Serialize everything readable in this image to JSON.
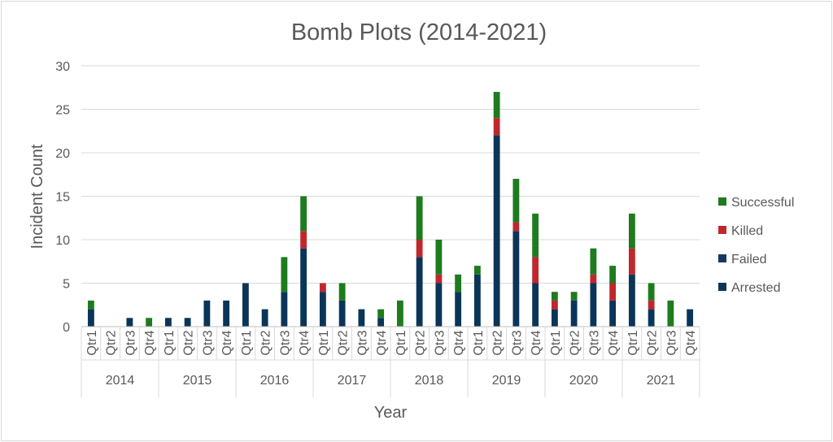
{
  "chart_data": {
    "type": "bar",
    "stacked": true,
    "title": "Bomb Plots (2014-2021)",
    "xlabel": "Year",
    "ylabel": "Incident Count",
    "ylim": [
      0,
      30
    ],
    "yticks": [
      0,
      5,
      10,
      15,
      20,
      25,
      30
    ],
    "grid": true,
    "legend_position": "right",
    "groups": [
      "2014",
      "2015",
      "2016",
      "2017",
      "2018",
      "2019",
      "2020",
      "2021"
    ],
    "quarters": [
      "Qtr1",
      "Qtr2",
      "Qtr3",
      "Qtr4"
    ],
    "categories": [
      "2014 Qtr1",
      "2014 Qtr2",
      "2014 Qtr3",
      "2014 Qtr4",
      "2015 Qtr1",
      "2015 Qtr2",
      "2015 Qtr3",
      "2015 Qtr4",
      "2016 Qtr1",
      "2016 Qtr2",
      "2016 Qtr3",
      "2016 Qtr4",
      "2017 Qtr1",
      "2017 Qtr2",
      "2017 Qtr3",
      "2017 Qtr4",
      "2018 Qtr1",
      "2018 Qtr2",
      "2018 Qtr3",
      "2018 Qtr4",
      "2019 Qtr1",
      "2019 Qtr2",
      "2019 Qtr3",
      "2019 Qtr4",
      "2020 Qtr1",
      "2020 Qtr2",
      "2020 Qtr3",
      "2020 Qtr4",
      "2021 Qtr1",
      "2021 Qtr2",
      "2021 Qtr3",
      "2021 Qtr4"
    ],
    "series": [
      {
        "name": "Arrested",
        "color": "#0b3558",
        "values": [
          2,
          0,
          1,
          0,
          1,
          1,
          3,
          3,
          5,
          2,
          4,
          9,
          4,
          3,
          2,
          1,
          0,
          8,
          5,
          4,
          6,
          22,
          11,
          5,
          2,
          3,
          5,
          3,
          6,
          2,
          0,
          2
        ]
      },
      {
        "name": "Failed",
        "color": "#17375e",
        "values": [
          0,
          0,
          0,
          0,
          0,
          0,
          0,
          0,
          0,
          0,
          0,
          0,
          0,
          0,
          0,
          0,
          0,
          0,
          0,
          0,
          0,
          0,
          0,
          0,
          0,
          0,
          0,
          0,
          0,
          0,
          0,
          0
        ]
      },
      {
        "name": "Killed",
        "color": "#c0272d",
        "values": [
          0,
          0,
          0,
          0,
          0,
          0,
          0,
          0,
          0,
          0,
          0,
          2,
          1,
          0,
          0,
          0,
          0,
          2,
          1,
          0,
          0,
          2,
          1,
          3,
          1,
          0,
          1,
          2,
          3,
          1,
          0,
          0
        ]
      },
      {
        "name": "Successful",
        "color": "#1e7b1e",
        "values": [
          1,
          0,
          0,
          1,
          0,
          0,
          0,
          0,
          0,
          0,
          4,
          4,
          0,
          2,
          0,
          1,
          3,
          5,
          4,
          2,
          1,
          3,
          5,
          5,
          1,
          1,
          3,
          2,
          4,
          2,
          3,
          0
        ]
      }
    ],
    "legend_order": [
      "Successful",
      "Killed",
      "Failed",
      "Arrested"
    ]
  }
}
